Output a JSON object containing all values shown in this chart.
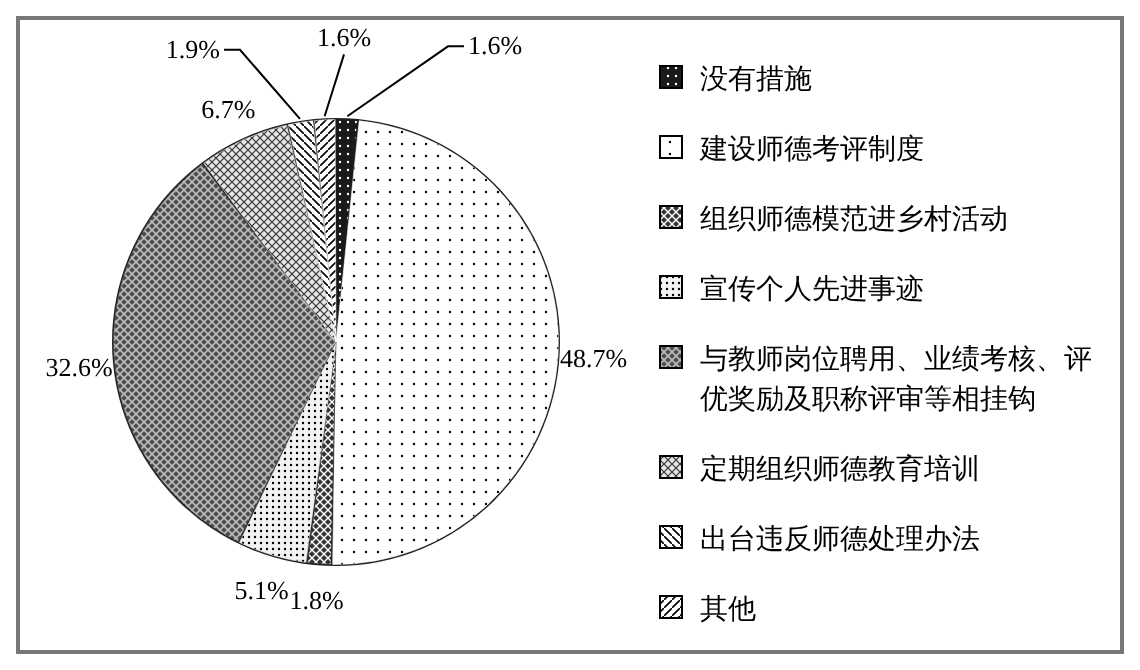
{
  "chart_data": {
    "type": "pie",
    "categories": [
      "没有措施",
      "建设师德考评制度",
      "组织师德模范进乡村活动",
      "宣传个人先进事迹",
      "与教师岗位聘用、业绩考核、评优奖励及职称评审等相挂钩",
      "定期组织师德教育培训",
      "出台违反师德处理办法",
      "其他"
    ],
    "values": [
      1.6,
      48.7,
      1.8,
      5.1,
      32.6,
      6.7,
      1.9,
      1.6
    ],
    "value_labels": [
      "1.6%",
      "48.7%",
      "1.8%",
      "5.1%",
      "32.6%",
      "6.7%",
      "1.9%",
      "1.6%"
    ],
    "colors": [
      "#1a1a1a",
      "#ffffff",
      "#333333",
      "#f2f2f2",
      "#4d4d4d",
      "#e6e6e6",
      "#ffffff",
      "#ffffff"
    ],
    "legend": "right"
  }
}
